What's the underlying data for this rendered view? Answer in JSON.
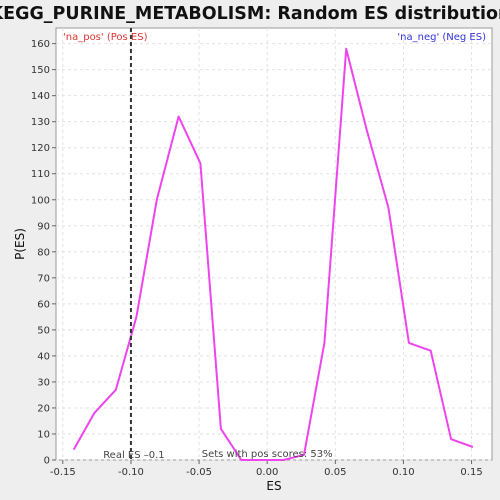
{
  "chart_data": {
    "type": "line",
    "title": "KEGG_PURINE_METABOLISM: Random ES distribution",
    "xlabel": "ES",
    "ylabel": "P(ES)",
    "xlim": [
      -0.155,
      0.165
    ],
    "ylim": [
      0,
      166
    ],
    "grid": true,
    "x_ticks": [
      -0.15,
      -0.1,
      -0.05,
      0.0,
      0.05,
      0.1,
      0.15
    ],
    "x_tick_labels": [
      "-0.15",
      "-0.10",
      "-0.05",
      "0.00",
      "0.05",
      "0.10",
      "0.15"
    ],
    "y_ticks": [
      0,
      10,
      20,
      30,
      40,
      50,
      60,
      70,
      80,
      90,
      100,
      110,
      120,
      130,
      140,
      150,
      160
    ],
    "y_tick_labels": [
      "0",
      "10",
      "20",
      "30",
      "40",
      "50",
      "60",
      "70",
      "80",
      "90",
      "100",
      "110",
      "120",
      "130",
      "140",
      "150",
      "160"
    ],
    "series": [
      {
        "color": "#ee44ee",
        "x": [
          -0.142,
          -0.127,
          -0.111,
          -0.096,
          -0.081,
          -0.065,
          -0.049,
          -0.034,
          -0.019,
          -0.003,
          0.012,
          0.027,
          0.042,
          0.058,
          0.073,
          0.089,
          0.104,
          0.12,
          0.135,
          0.151
        ],
        "y": [
          4,
          18,
          27,
          55,
          100,
          132,
          114,
          12,
          0,
          0,
          0,
          2,
          45,
          158,
          127,
          97,
          45,
          42,
          8,
          5
        ]
      }
    ],
    "real_es": {
      "x": -0.1,
      "label": "Real ES –0.1"
    },
    "annotations": {
      "pos_label": "'na_pos' (Pos ES)",
      "neg_label": "'na_neg' (Neg ES)",
      "sets_label": "Sets with pos scores: 53%",
      "pos_color": "#dd3333",
      "neg_color": "#3333dd"
    }
  }
}
